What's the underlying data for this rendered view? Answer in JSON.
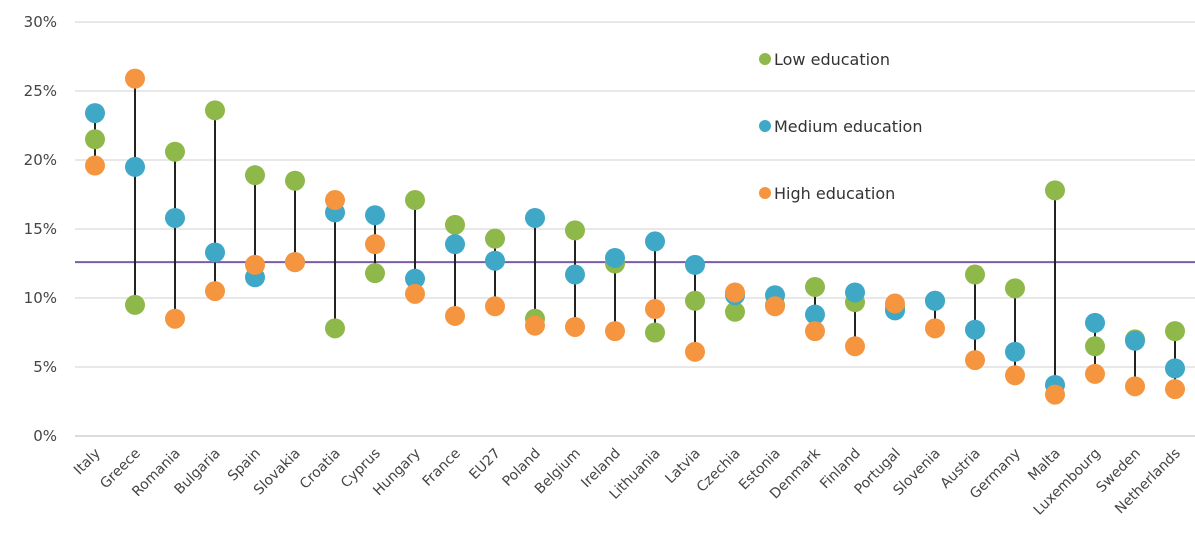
{
  "chart_data": {
    "type": "scatter",
    "title": "",
    "xlabel": "",
    "ylabel": "",
    "ylim": [
      0,
      30
    ],
    "y_ticks": [
      "0%",
      "5%",
      "10%",
      "15%",
      "20%",
      "25%",
      "30%"
    ],
    "grid": true,
    "legend_position": "top-right",
    "reference_line": {
      "value": 12.6,
      "color": "#7b5ca8"
    },
    "categories": [
      "Italy",
      "Greece",
      "Romania",
      "Bulgaria",
      "Spain",
      "Slovakia",
      "Croatia",
      "Cyprus",
      "Hungary",
      "France",
      "EU27",
      "Poland",
      "Belgium",
      "Ireland",
      "Lithuania",
      "Latvia",
      "Czechia",
      "Estonia",
      "Denmark",
      "Finland",
      "Portugal",
      "Slovenia",
      "Austria",
      "Germany",
      "Malta",
      "Luxembourg",
      "Sweden",
      "Netherlands"
    ],
    "series": [
      {
        "name": "Low education",
        "color": "#8fb84a",
        "values": [
          21.5,
          9.5,
          20.6,
          23.6,
          18.9,
          18.5,
          7.8,
          11.8,
          17.1,
          15.3,
          14.3,
          8.5,
          14.9,
          12.5,
          7.5,
          9.8,
          9.0,
          9.5,
          10.8,
          9.7,
          9.3,
          9.8,
          11.7,
          10.7,
          17.8,
          6.5,
          7.0,
          7.6
        ]
      },
      {
        "name": "Medium education",
        "color": "#3ea8c6",
        "values": [
          23.4,
          19.5,
          15.8,
          13.3,
          11.5,
          12.6,
          16.2,
          16.0,
          11.4,
          13.9,
          12.7,
          15.8,
          11.7,
          12.9,
          14.1,
          12.4,
          10.2,
          10.2,
          8.8,
          10.4,
          9.1,
          9.8,
          7.7,
          6.1,
          3.7,
          8.2,
          6.9,
          4.9
        ]
      },
      {
        "name": "High education",
        "color": "#f5953f",
        "values": [
          19.6,
          25.9,
          8.5,
          10.5,
          12.4,
          12.6,
          17.1,
          13.9,
          10.3,
          8.7,
          9.4,
          8.0,
          7.9,
          7.6,
          9.2,
          6.1,
          10.4,
          9.4,
          7.6,
          6.5,
          9.6,
          7.8,
          5.5,
          4.4,
          3.0,
          4.5,
          3.6,
          3.4
        ]
      }
    ]
  }
}
